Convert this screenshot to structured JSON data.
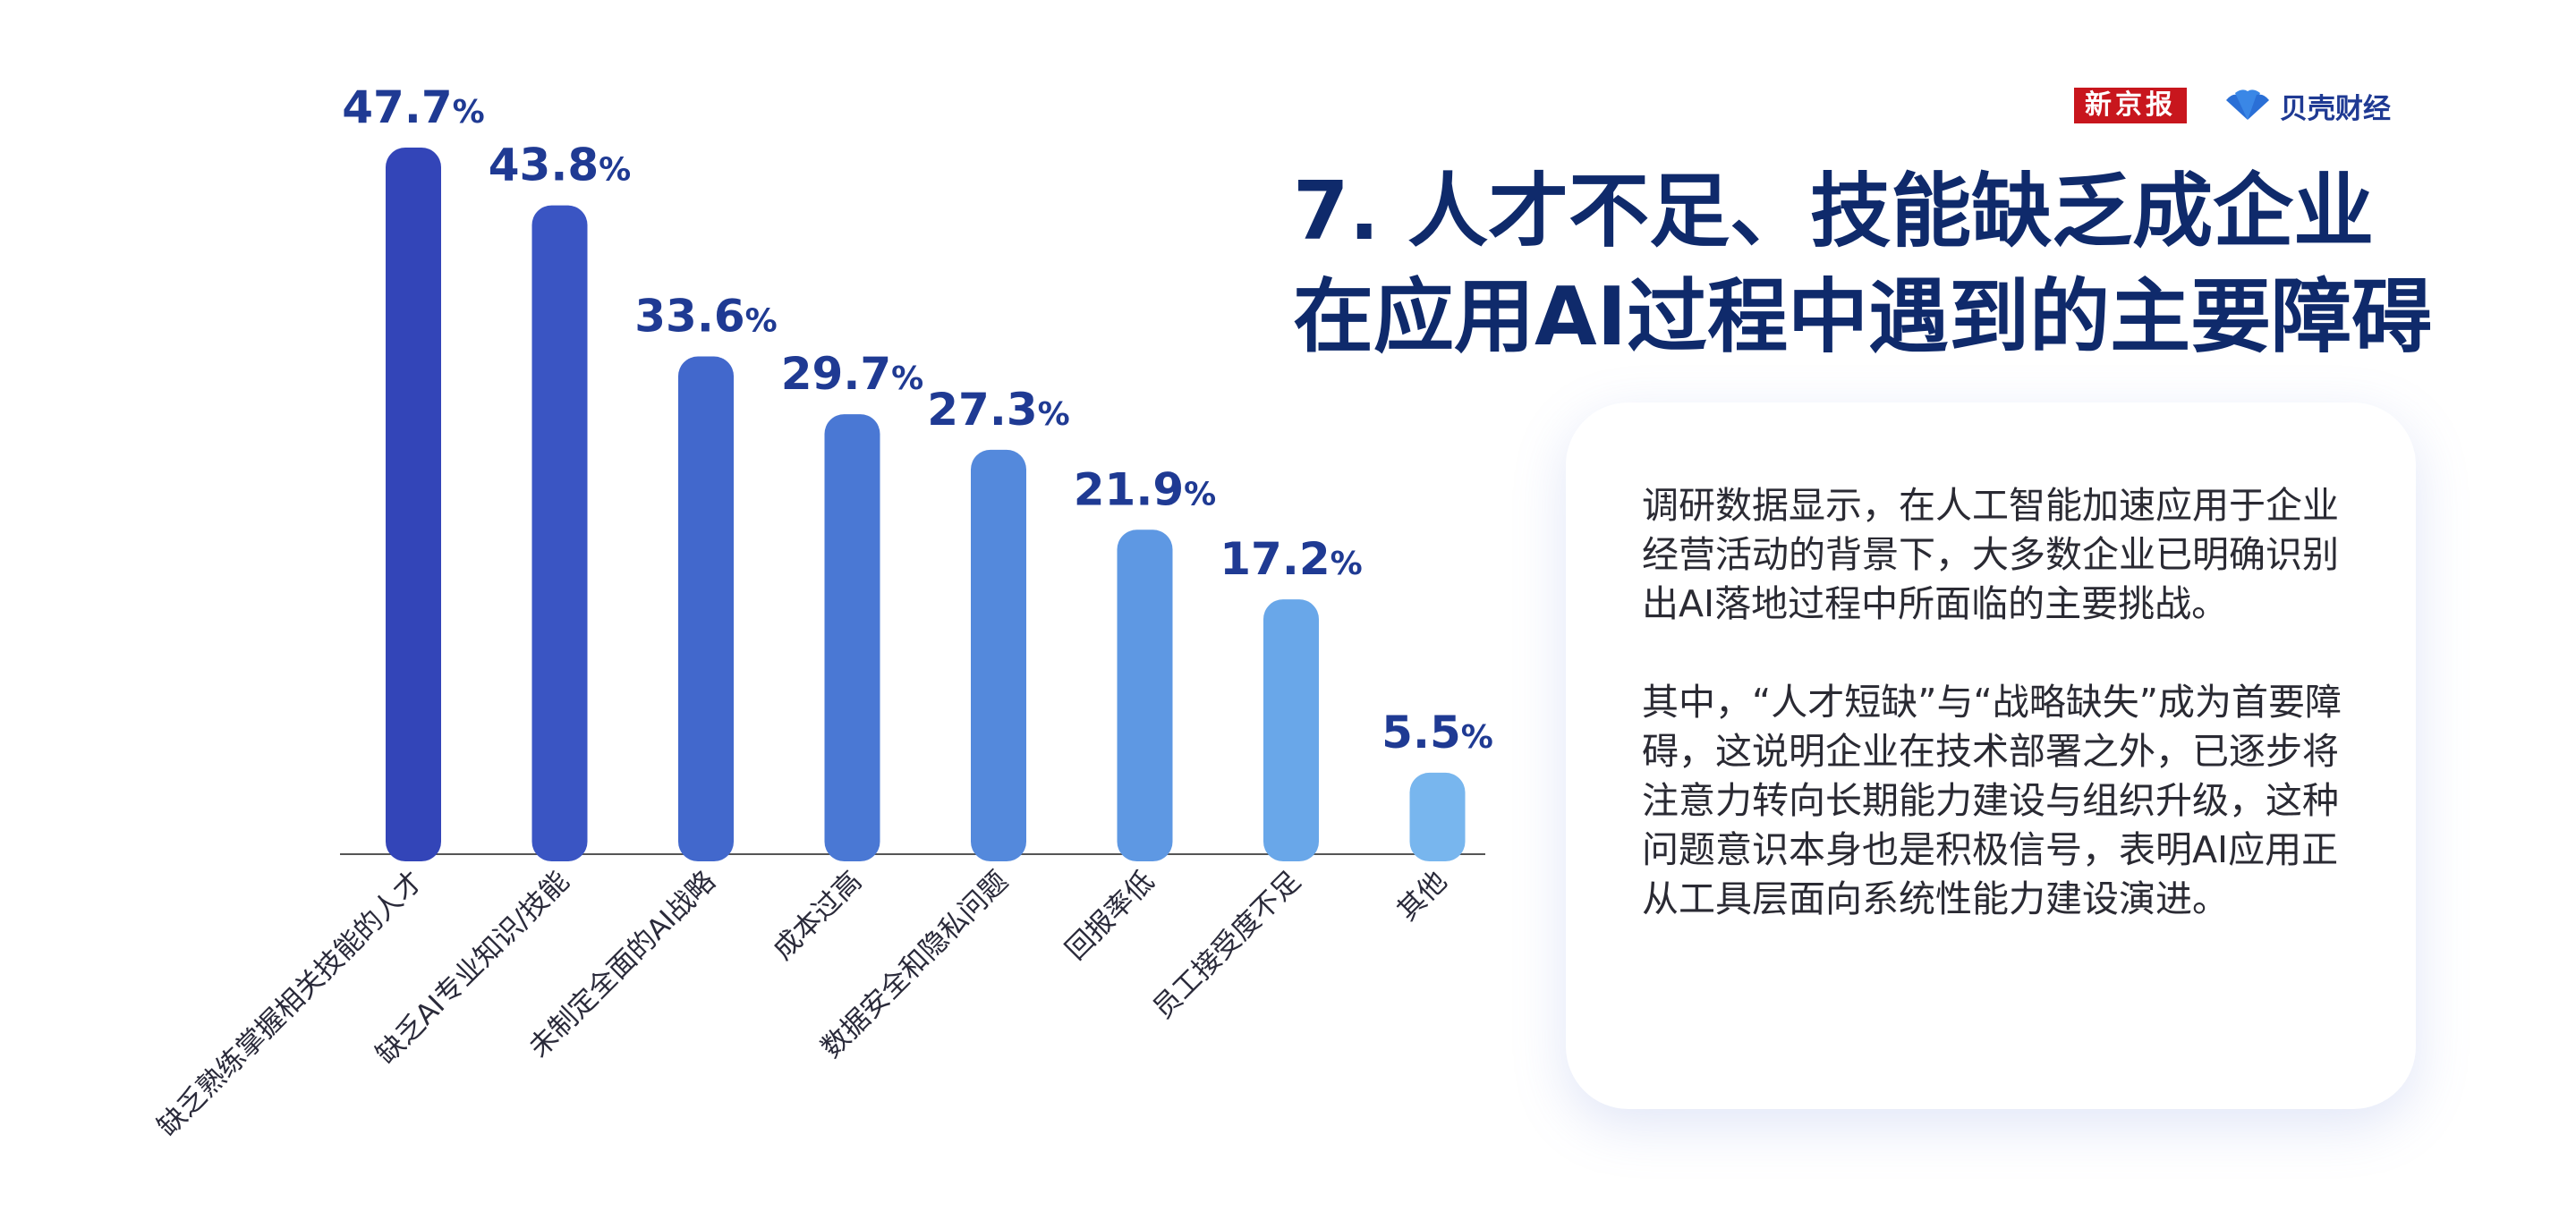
{
  "logos": {
    "xinjingbao": "新京报",
    "beike": "贝壳财经"
  },
  "title": {
    "line1": "7. 人才不足、技能缺乏成企业",
    "line2": "在应用AI过程中遇到的主要障碍"
  },
  "card": {
    "p1": "调研数据显示，在人工智能加速应用于企业经营活动的背景下，大多数企业已明确识别出AI落地过程中所面临的主要挑战。",
    "p2": "其中，“人才短缺”与“战略缺失”成为首要障碍，这说明企业在技术部署之外，已逐步将注意力转向长期能力建设与组织升级，这种问题意识本身也是积极信号，表明AI应用正从工具层面向系统性能力建设演进。"
  },
  "chart_data": {
    "type": "bar",
    "categories": [
      "缺乏熟练掌握相关技能的人才",
      "缺乏AI专业知识/技能",
      "未制定全面的AI战略",
      "成本过高",
      "数据安全和隐私问题",
      "回报率低",
      "员工接受度不足",
      "其他"
    ],
    "values": [
      47.7,
      43.8,
      33.6,
      29.7,
      27.3,
      21.9,
      17.2,
      5.5
    ],
    "value_unit": "%",
    "ylim": [
      0,
      50
    ],
    "grid": false,
    "colors": [
      "#3345b8",
      "#3a55c3",
      "#4268cc",
      "#4a78d4",
      "#5489dc",
      "#5e98e3",
      "#69a7e9",
      "#78b6ee"
    ]
  }
}
